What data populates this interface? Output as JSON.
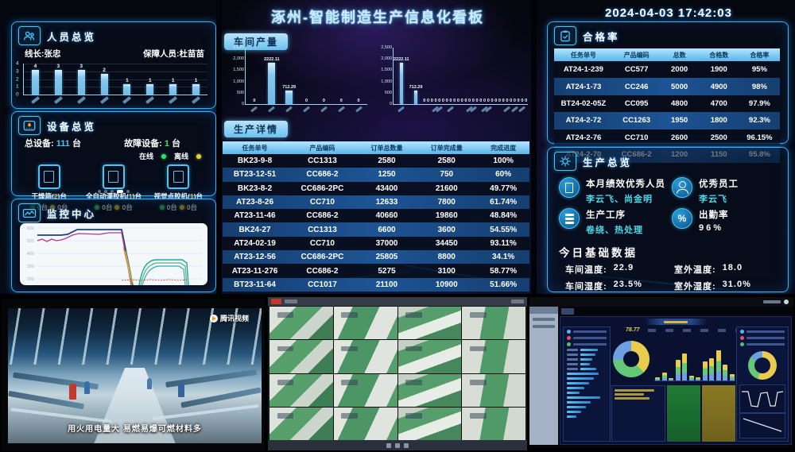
{
  "colors": {
    "accent": "#2fb7f0",
    "bar": "#86c8ee",
    "online": "#35e06a",
    "offline": "#e6d23a",
    "table_header": "#57b6ea"
  },
  "header": {
    "title": "涿州-智能制造生产信息化看板",
    "datetime": "2024-04-03 17:42:03"
  },
  "personnel": {
    "title": "人员总览",
    "line_leader": "线长:张忠",
    "guard": "保障人员:杜苗苗",
    "chart": {
      "type": "bar",
      "values": [
        4,
        3,
        3,
        2,
        1,
        1,
        1,
        1
      ],
      "y_ticks": [
        "4",
        "3",
        "2",
        "1",
        "0"
      ],
      "ylim": [
        0,
        4
      ]
    }
  },
  "equipment": {
    "title": "设备总览",
    "total_label": "总设备:",
    "total_value": "111",
    "unit": "台",
    "fault_label": "故障设备:",
    "fault_value": "1",
    "online_label": "在线",
    "offline_label": "离线",
    "devices": [
      {
        "name": "干燥箱",
        "count": "2",
        "online_count": "0台",
        "offline_count": "0台"
      },
      {
        "name": "全自动灌胶机",
        "count": "1",
        "online_count": "0台",
        "offline_count": "0台"
      },
      {
        "name": "视觉点胶机",
        "count": "1",
        "online_count": "0台",
        "offline_count": "0台"
      }
    ]
  },
  "monitor": {
    "title": "监控中心",
    "y_ticks": [
      "600",
      "500",
      "400",
      "300",
      "200"
    ]
  },
  "workshop": {
    "title": "车间产量",
    "chart1": {
      "type": "bar",
      "values": [
        0,
        2222.11,
        712.29,
        0,
        0,
        0,
        0
      ],
      "y_ticks": [
        "2,500",
        "2,000",
        "1,500",
        "1,000",
        "500",
        "0"
      ],
      "ylim": [
        0,
        2500
      ]
    },
    "chart2": {
      "type": "bar",
      "values": [
        2222.11,
        712.29,
        0,
        0,
        0,
        0,
        0,
        0,
        0,
        0,
        0,
        0,
        0,
        0,
        0,
        0,
        0,
        0,
        0,
        0,
        0,
        0,
        0,
        0,
        0,
        0,
        0,
        0,
        0,
        0
      ],
      "y_ticks": [
        "2,500",
        "2,000",
        "1,500",
        "1,000",
        "500",
        "0"
      ],
      "ylim": [
        0,
        2500
      ]
    }
  },
  "production_detail": {
    "title": "生产详情",
    "columns": [
      "任务单号",
      "产品编码",
      "订单总数量",
      "订单完成量",
      "完成进度"
    ],
    "rows": [
      [
        "BK23-9-8",
        "CC1313",
        "2580",
        "2580",
        "100%"
      ],
      [
        "BT23-12-51",
        "CC686-2",
        "1250",
        "750",
        "60%"
      ],
      [
        "BK23-8-2",
        "CC686-2PC",
        "43400",
        "21600",
        "49.77%"
      ],
      [
        "AT23-8-26",
        "CC710",
        "12633",
        "7800",
        "61.74%"
      ],
      [
        "AT23-11-46",
        "CC686-2",
        "40660",
        "19860",
        "48.84%"
      ],
      [
        "BK24-27",
        "CC1313",
        "6600",
        "3600",
        "54.55%"
      ],
      [
        "AT24-02-19",
        "CC710",
        "37000",
        "34450",
        "93.11%"
      ],
      [
        "AT23-12-56",
        "CC686-2PC",
        "25805",
        "8800",
        "34.1%"
      ],
      [
        "AT23-11-276",
        "CC686-2",
        "5275",
        "3100",
        "58.77%"
      ],
      [
        "BT23-11-64",
        "CC1017",
        "21100",
        "10900",
        "51.66%"
      ]
    ]
  },
  "pass_rate": {
    "title": "合格率",
    "columns": [
      "任务单号",
      "产品编码",
      "总数",
      "合格数",
      "合格率"
    ],
    "rows": [
      [
        "AT24-1-239",
        "CC577",
        "2000",
        "1900",
        "95%"
      ],
      [
        "AT24-1-73",
        "CC246",
        "5000",
        "4900",
        "98%"
      ],
      [
        "BT24-02-05Z",
        "CC095",
        "4800",
        "4700",
        "97.9%"
      ],
      [
        "AT24-2-72",
        "CC1263",
        "1950",
        "1800",
        "92.3%"
      ],
      [
        "AT24-2-76",
        "CC710",
        "2600",
        "2500",
        "96.15%"
      ],
      [
        "AT24-2-70",
        "CC686-2",
        "1200",
        "1150",
        "95.8%"
      ]
    ]
  },
  "overview": {
    "title": "生产总览",
    "items": [
      {
        "label": "本月绩效优秀人员",
        "value": "李云飞、尚金明",
        "icon": "badge-icon"
      },
      {
        "label": "优秀员工",
        "value": "李云飞",
        "icon": "person-icon"
      },
      {
        "label": "生产工序",
        "value": "卷绕、热处理",
        "icon": "process-icon"
      },
      {
        "label": "出勤率",
        "value": "96%",
        "icon": "percent-icon",
        "glyph": "%"
      }
    ],
    "today_title": "今日基础数据",
    "today": [
      {
        "label": "车间温度:",
        "value": "22.9"
      },
      {
        "label": "室外温度:",
        "value": "18.0"
      },
      {
        "label": "车间湿度:",
        "value": "23.5%"
      },
      {
        "label": "室外湿度:",
        "value": "31.0%"
      }
    ]
  },
  "bottom": {
    "left_video": {
      "watermark": "腾讯视频",
      "caption": "用火用电量大 易燃易爆可燃材料多"
    },
    "right_dashboard": {
      "stat": "78.77"
    }
  }
}
